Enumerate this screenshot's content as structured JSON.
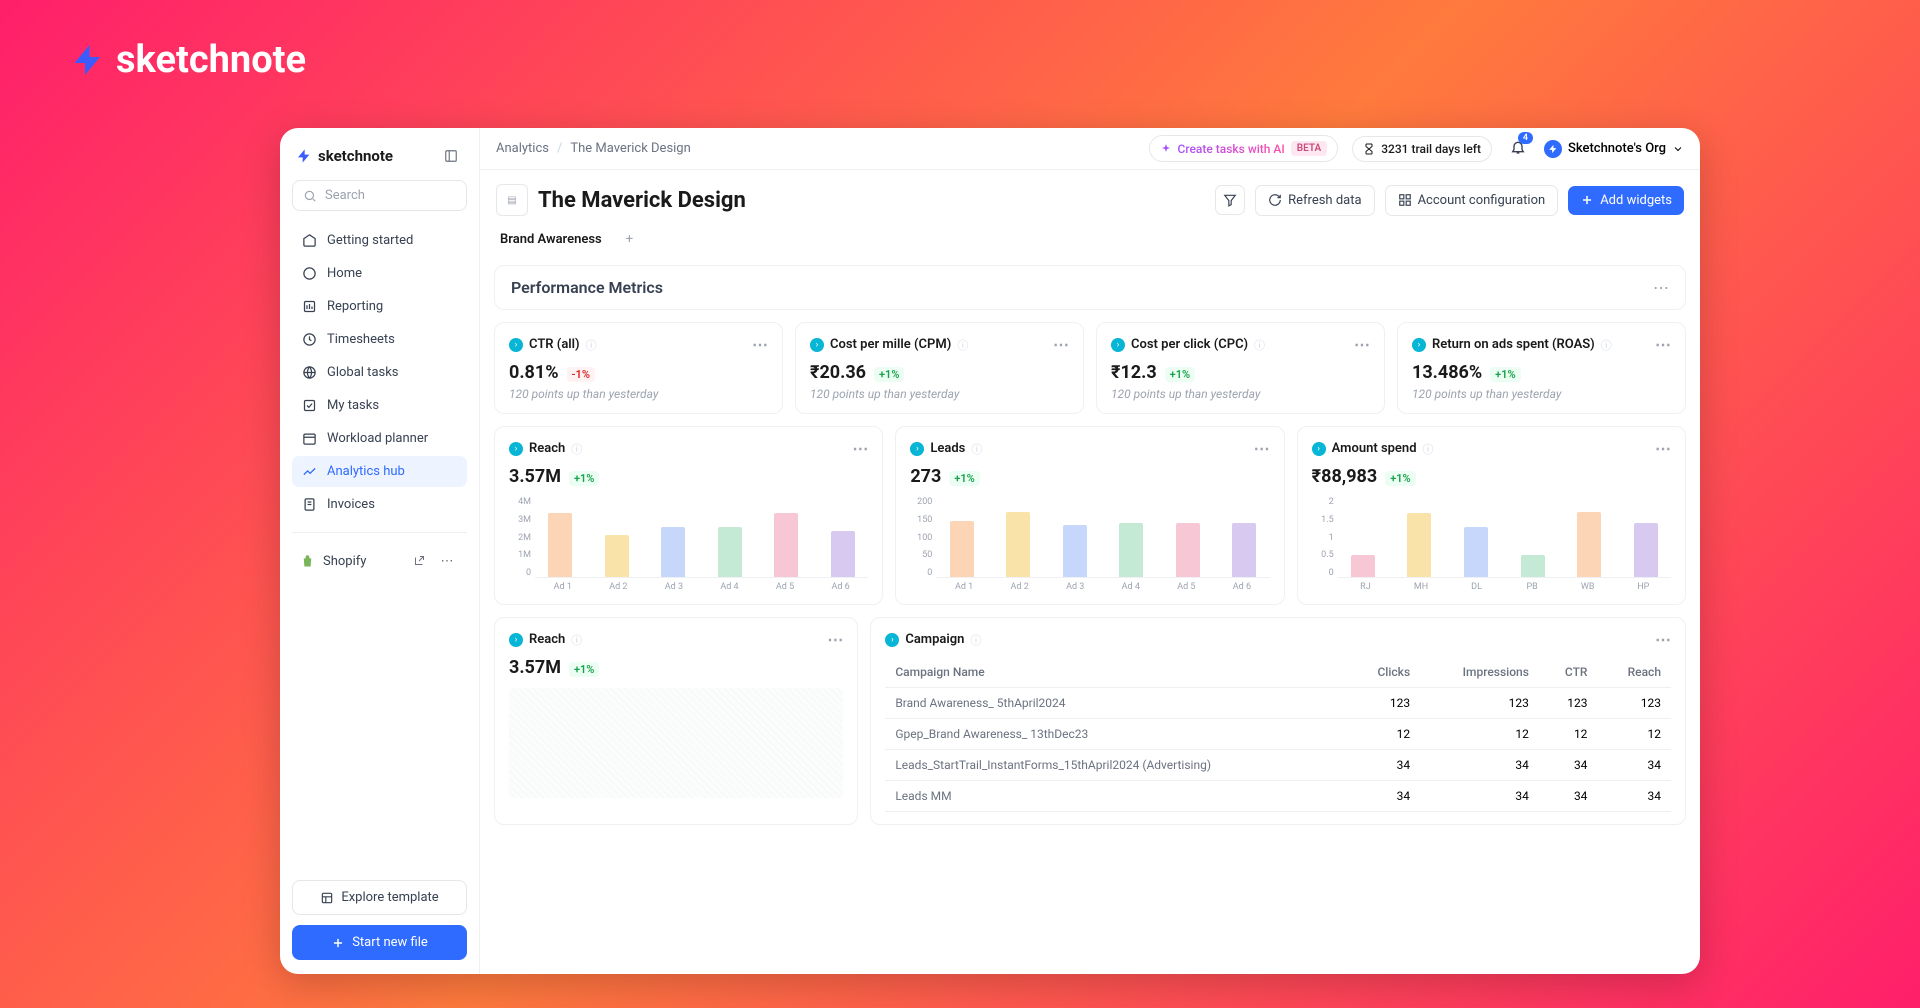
{
  "brand": "sketchnote",
  "sidebar": {
    "search_placeholder": "Search",
    "items": [
      {
        "label": "Getting started"
      },
      {
        "label": "Home"
      },
      {
        "label": "Reporting"
      },
      {
        "label": "Timesheets"
      },
      {
        "label": "Global tasks"
      },
      {
        "label": "My tasks"
      },
      {
        "label": "Workload planner"
      },
      {
        "label": "Analytics hub"
      },
      {
        "label": "Invoices"
      }
    ],
    "active_index": 7,
    "integration": {
      "label": "Shopify"
    },
    "explore_label": "Explore template",
    "start_label": "Start new file"
  },
  "topbar": {
    "breadcrumb": [
      "Analytics",
      "The Maverick Design"
    ],
    "ai_label": "Create tasks with AI",
    "beta_label": "BETA",
    "trial_label": "3231 trail days left",
    "notif_count": "4",
    "org_label": "Sketchnote's Org"
  },
  "page": {
    "title": "The Maverick Design",
    "refresh_label": "Refresh data",
    "account_label": "Account configuration",
    "add_label": "Add widgets"
  },
  "tabs": [
    "Brand Awareness"
  ],
  "section_title": "Performance Metrics",
  "kpis": [
    {
      "title": "CTR (all)",
      "value": "0.81%",
      "delta": "-1%",
      "dir": "down",
      "sub": "120 points up than yesterday"
    },
    {
      "title": "Cost per mille (CPM)",
      "value": "₹20.36",
      "delta": "+1%",
      "dir": "up",
      "sub": "120 points up than yesterday"
    },
    {
      "title": "Cost per click (CPC)",
      "value": "₹12.3",
      "delta": "+1%",
      "dir": "up",
      "sub": "120 points up than yesterday"
    },
    {
      "title": "Return on ads spent (ROAS)",
      "value": "13.486%",
      "delta": "+1%",
      "dir": "up",
      "sub": "120 points up than yesterday"
    }
  ],
  "charts": [
    {
      "title": "Reach",
      "value": "3.57M",
      "delta": "+1%",
      "y_labels": [
        "4M",
        "3M",
        "2M",
        "1M",
        "0"
      ],
      "categories": [
        "Ad 1",
        "Ad 2",
        "Ad 3",
        "Ad 4",
        "Ad 5",
        "Ad 6"
      ],
      "values": [
        3.2,
        2.1,
        2.5,
        2.5,
        3.2,
        2.3
      ],
      "max": 4,
      "colors": [
        "#fbd5b5",
        "#f9e3a8",
        "#c7d7fb",
        "#c4e9d5",
        "#f7c7d6",
        "#d7c9f0"
      ]
    },
    {
      "title": "Leads",
      "value": "273",
      "delta": "+1%",
      "y_labels": [
        "200",
        "150",
        "100",
        "50",
        "0"
      ],
      "categories": [
        "Ad 1",
        "Ad 2",
        "Ad 3",
        "Ad 4",
        "Ad 5",
        "Ad 6"
      ],
      "values": [
        140,
        162,
        130,
        135,
        135,
        135
      ],
      "max": 200,
      "colors": [
        "#fbd5b5",
        "#f9e3a8",
        "#c7d7fb",
        "#c4e9d5",
        "#f7c7d6",
        "#d7c9f0"
      ]
    },
    {
      "title": "Amount spend",
      "value": "₹88,983",
      "delta": "+1%",
      "y_labels": [
        "2",
        "1.5",
        "1",
        "0.5",
        "0"
      ],
      "categories": [
        "RJ",
        "MH",
        "DL",
        "PB",
        "WB",
        "HP"
      ],
      "values": [
        0.55,
        1.6,
        1.25,
        0.55,
        1.62,
        1.35
      ],
      "max": 2,
      "colors": [
        "#f7c7d6",
        "#f9e3a8",
        "#c7d7fb",
        "#c4e9d5",
        "#fbd5b5",
        "#d7c9f0"
      ]
    }
  ],
  "reach2": {
    "title": "Reach",
    "value": "3.57M",
    "delta": "+1%"
  },
  "campaign": {
    "title": "Campaign",
    "columns": [
      "Campaign Name",
      "Clicks",
      "Impressions",
      "CTR",
      "Reach"
    ],
    "rows": [
      [
        "Brand Awareness_ 5thApril2024",
        "123",
        "123",
        "123",
        "123"
      ],
      [
        "Gpep_Brand Awareness_ 13thDec23",
        "12",
        "12",
        "12",
        "12"
      ],
      [
        "Leads_StartTrail_InstantForms_15thApril2024 (Advertising)",
        "34",
        "34",
        "34",
        "34"
      ],
      [
        "Leads MM",
        "34",
        "34",
        "34",
        "34"
      ]
    ]
  },
  "colors": {
    "primary": "#2f6bff",
    "teal": "#06b6d4",
    "green": "#16a34a",
    "red": "#dc2626"
  }
}
